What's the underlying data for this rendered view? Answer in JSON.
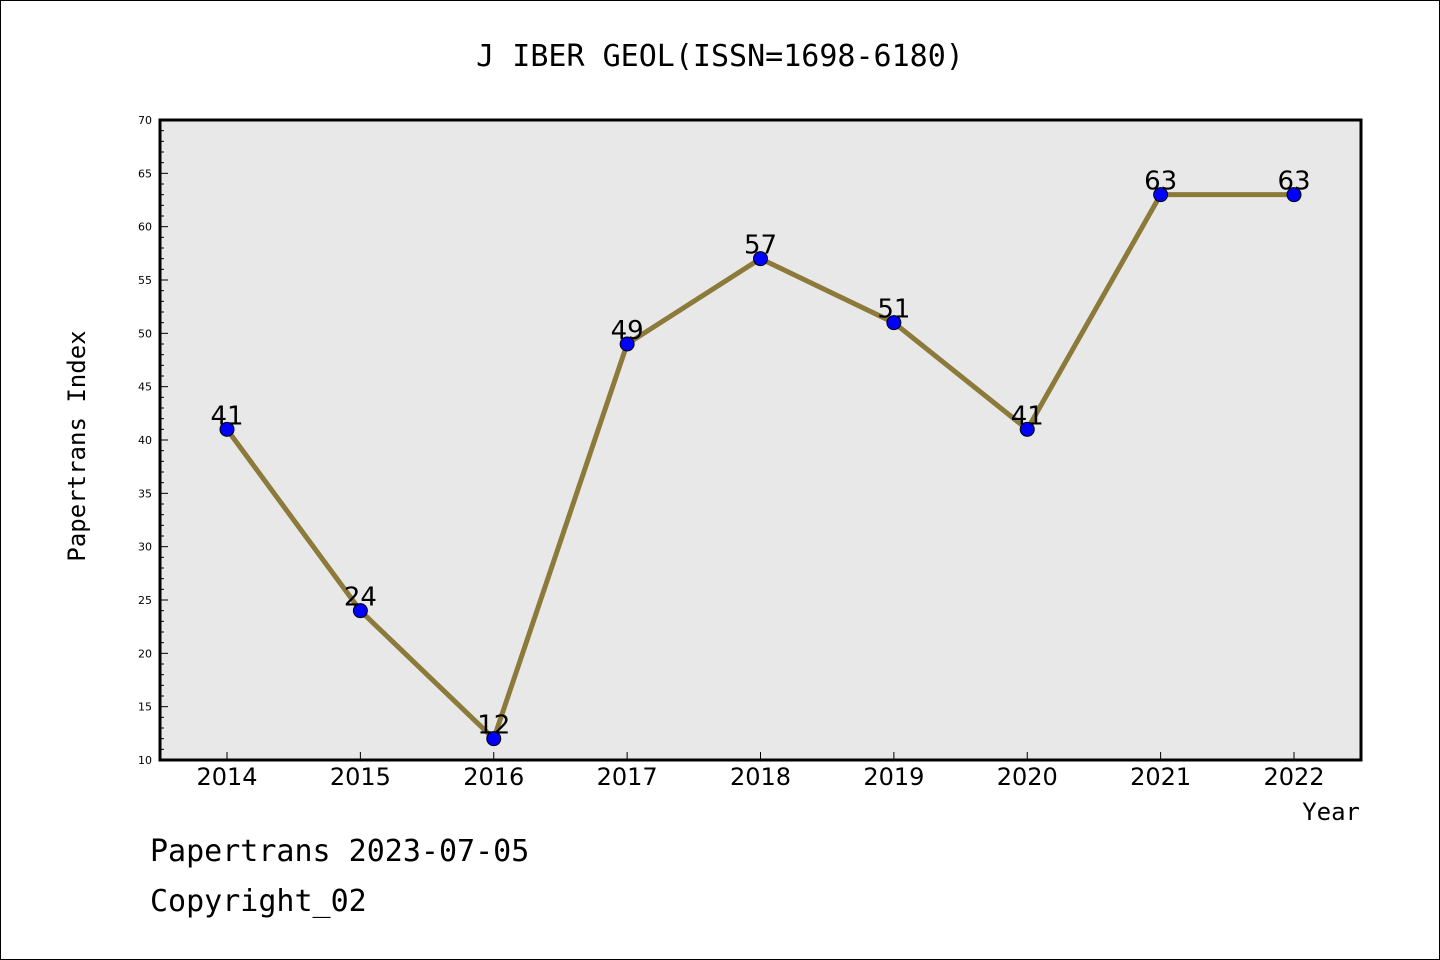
{
  "chart_data": {
    "type": "line",
    "title": "J IBER GEOL(ISSN=1698-6180)",
    "xlabel": "Year",
    "ylabel": "Papertrans Index",
    "categories": [
      "2014",
      "2015",
      "2016",
      "2017",
      "2018",
      "2019",
      "2020",
      "2021",
      "2022"
    ],
    "values": [
      41,
      24,
      12,
      49,
      57,
      51,
      41,
      63,
      63
    ],
    "data_labels": [
      "41",
      "24",
      "12",
      "49",
      "57",
      "51",
      "41",
      "63",
      "63"
    ],
    "ylim": [
      10,
      70
    ],
    "yticks": [
      10,
      15,
      20,
      25,
      30,
      35,
      40,
      45,
      50,
      55,
      60,
      65,
      70
    ],
    "ytick_labels": [
      "10",
      "15",
      "20",
      "25",
      "30",
      "35",
      "40",
      "45",
      "50",
      "55",
      "60",
      "65",
      "70"
    ],
    "grid": false,
    "line_color": "#8b7a3a",
    "marker_color": "#0000ff",
    "plot_background": "#e8e8e8"
  },
  "footer": {
    "date_line": "Papertrans 2023-07-05",
    "copyright_line": "Copyright_02"
  }
}
